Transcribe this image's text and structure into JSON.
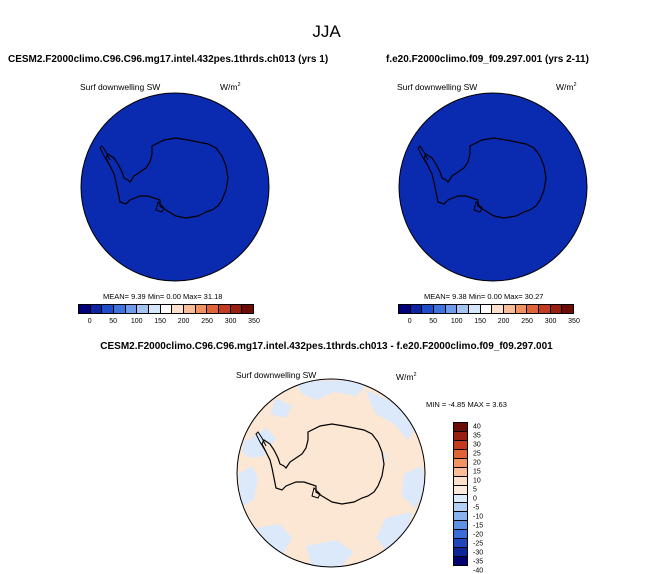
{
  "season": "JJA",
  "panels": {
    "test": {
      "title": "CESM2.F2000climo.C96.C96.mg17.intel.432pes.1thrds.ch013 (yrs 1)",
      "variable": "Surf downwelling SW",
      "units_base": "W/m",
      "units_exp": "2",
      "stats": "MEAN=  9.39  Min=  0.00  Max=  31.18"
    },
    "control": {
      "title": "f.e20.F2000climo.f09_f09.297.001 (yrs 2-11)",
      "variable": "Surf downwelling SW",
      "units_base": "W/m",
      "units_exp": "2",
      "stats": "MEAN=  9.38  Min=  0.00  Max=  30.27"
    },
    "diff": {
      "title": "CESM2.F2000climo.C96.C96.mg17.intel.432pes.1thrds.ch013 - f.e20.F2000climo.f09_f09.297.001",
      "variable": "Surf downwelling SW",
      "units_base": "W/m",
      "units_exp": "2",
      "stats": "MIN =  -4.85 MAX =  3.63"
    }
  },
  "abs_colorbar": {
    "colors": [
      "#00007a",
      "#0c23a3",
      "#1f4cc8",
      "#3f72dc",
      "#6e9be9",
      "#a3c4f2",
      "#d6e6fa",
      "#ffffff",
      "#fde0cc",
      "#f8bc97",
      "#f19265",
      "#e06438",
      "#c23b1c",
      "#992010",
      "#6b0d06"
    ],
    "ticks": [
      "0",
      "50",
      "100",
      "150",
      "200",
      "250",
      "300",
      "350"
    ]
  },
  "diff_colorbar": {
    "colors": [
      "#6b0d06",
      "#992010",
      "#c23b1c",
      "#e06438",
      "#f19265",
      "#f8bc97",
      "#fde0cc",
      "#fdeadc",
      "#dce9fb",
      "#b4cff5",
      "#8ab2ee",
      "#5e90e3",
      "#3a6bd7",
      "#1f46bd",
      "#0d2598",
      "#000070"
    ],
    "ticks": [
      "40",
      "35",
      "30",
      "25",
      "20",
      "15",
      "10",
      "5",
      "0",
      "-5",
      "-10",
      "-15",
      "-20",
      "-25",
      "-30",
      "-35",
      "-40"
    ]
  },
  "map_colors": {
    "abs_fill": "#0a2ab0",
    "diff_base": "#fce6d4",
    "diff_negative": "#dce9fb"
  }
}
